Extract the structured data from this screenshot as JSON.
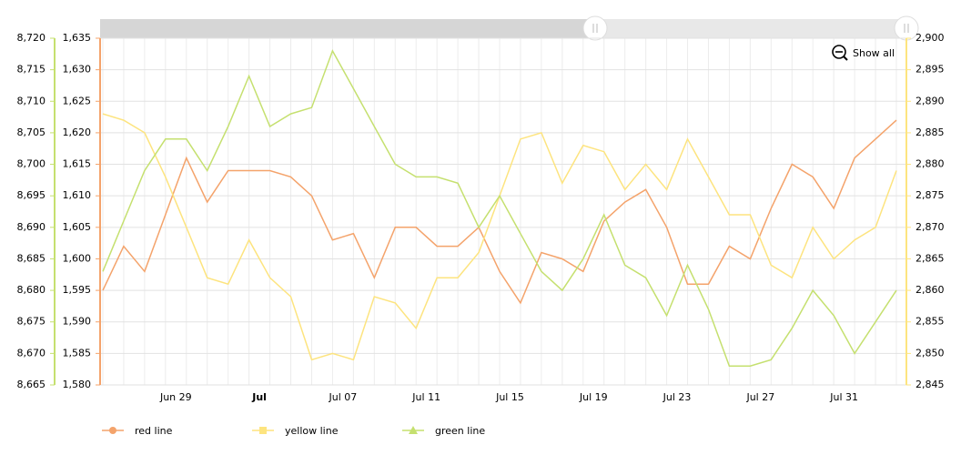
{
  "chart_data": {
    "type": "line",
    "categories": [
      null,
      null,
      null,
      "Jun 29",
      null,
      null,
      null,
      "Jul",
      null,
      null,
      null,
      "Jul 07",
      null,
      null,
      null,
      "Jul 11",
      null,
      null,
      null,
      "Jul 15",
      null,
      null,
      null,
      "Jul 19",
      null,
      null,
      null,
      "Jul 23",
      null,
      null,
      null,
      "Jul 27",
      null,
      null,
      null,
      "Jul 31",
      null,
      null,
      null
    ],
    "series": [
      {
        "name": "red line",
        "color": "#f4a36b",
        "axis": "y3",
        "marker": "circle",
        "values": [
          1595,
          1602,
          1598,
          1607,
          1616,
          1609,
          1614,
          1614,
          1614,
          1613,
          1610,
          1603,
          1604,
          1597,
          1605,
          1605,
          1602,
          1602,
          1605,
          1598,
          1593,
          1601,
          1600,
          1598,
          1606,
          1609,
          1611,
          1605,
          1596,
          1596,
          1602,
          1600,
          1608,
          1615,
          1613,
          1608,
          1616,
          1619,
          1622
        ]
      },
      {
        "name": "yellow line",
        "color": "#fde47f",
        "axis": "y2",
        "marker": "square",
        "values": [
          2888,
          2887,
          2885,
          2878,
          2870,
          2862,
          2861,
          2868,
          2862,
          2859,
          2849,
          2850,
          2849,
          2859,
          2858,
          2854,
          2862,
          2862,
          2866,
          2875,
          2884,
          2885,
          2877,
          2883,
          2882,
          2876,
          2880,
          2876,
          2884,
          2878,
          2872,
          2872,
          2864,
          2862,
          2870,
          2865,
          2868,
          2870,
          2879
        ]
      },
      {
        "name": "green line",
        "color": "#c5e06f",
        "axis": "y",
        "marker": "triangle",
        "values": [
          8683,
          8691,
          8699,
          8704,
          8704,
          8699,
          8706,
          8714,
          8706,
          8708,
          8709,
          8718,
          8712,
          8706,
          8700,
          8698,
          8698,
          8697,
          8690,
          8695,
          8689,
          8683,
          8680,
          8685,
          8692,
          8684,
          8682,
          8676,
          8684,
          8677,
          8668,
          8668,
          8669,
          8674,
          8680,
          8676,
          8670,
          8675,
          8680
        ]
      }
    ],
    "ylim": [
      8665,
      8720
    ],
    "yticks": [
      {
        "value": 8665,
        "label": "8,665"
      },
      {
        "value": 8670,
        "label": "8,670"
      },
      {
        "value": 8675,
        "label": "8,675"
      },
      {
        "value": 8680,
        "label": "8,680"
      },
      {
        "value": 8685,
        "label": "8,685"
      },
      {
        "value": 8690,
        "label": "8,690"
      },
      {
        "value": 8695,
        "label": "8,695"
      },
      {
        "value": 8700,
        "label": "8,700"
      },
      {
        "value": 8705,
        "label": "8,705"
      },
      {
        "value": 8710,
        "label": "8,710"
      },
      {
        "value": 8715,
        "label": "8,715"
      },
      {
        "value": 8720,
        "label": "8,720"
      }
    ],
    "y3lim": [
      1580,
      1635
    ],
    "y3ticks": [
      {
        "value": 1580,
        "label": "1,580"
      },
      {
        "value": 1585,
        "label": "1,585"
      },
      {
        "value": 1590,
        "label": "1,590"
      },
      {
        "value": 1595,
        "label": "1,595"
      },
      {
        "value": 1600,
        "label": "1,600"
      },
      {
        "value": 1605,
        "label": "1,605"
      },
      {
        "value": 1610,
        "label": "1,610"
      },
      {
        "value": 1615,
        "label": "1,615"
      },
      {
        "value": 1620,
        "label": "1,620"
      },
      {
        "value": 1625,
        "label": "1,625"
      },
      {
        "value": 1630,
        "label": "1,630"
      },
      {
        "value": 1635,
        "label": "1,635"
      }
    ],
    "y2lim": [
      2845,
      2900
    ],
    "y2ticks": [
      {
        "value": 2845,
        "label": "2,845"
      },
      {
        "value": 2850,
        "label": "2,850"
      },
      {
        "value": 2855,
        "label": "2,855"
      },
      {
        "value": 2860,
        "label": "2,860"
      },
      {
        "value": 2865,
        "label": "2,865"
      },
      {
        "value": 2870,
        "label": "2,870"
      },
      {
        "value": 2875,
        "label": "2,875"
      },
      {
        "value": 2880,
        "label": "2,880"
      },
      {
        "value": 2885,
        "label": "2,885"
      },
      {
        "value": 2890,
        "label": "2,890"
      },
      {
        "value": 2895,
        "label": "2,895"
      },
      {
        "value": 2900,
        "label": "2,900"
      }
    ],
    "grid": true,
    "legend": "bottom-left",
    "zoom_button": "Show all"
  }
}
